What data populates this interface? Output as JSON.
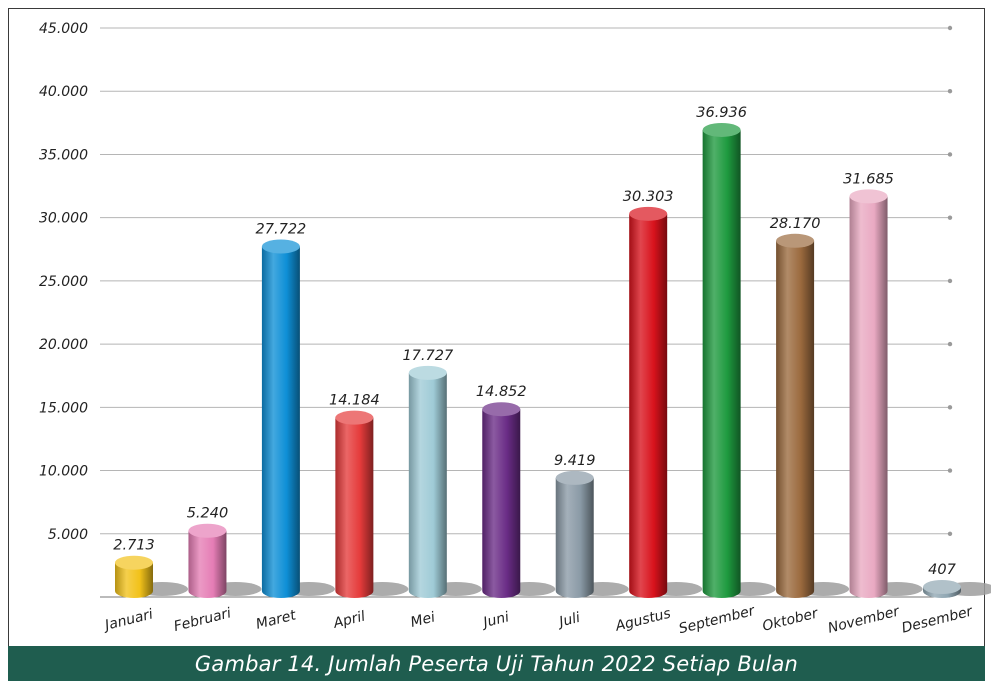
{
  "caption": "Gambar 14. Jumlah Peserta Uji Tahun 2022 Setiap Bulan",
  "chart_data": {
    "type": "bar",
    "title": "",
    "xlabel": "",
    "ylabel": "",
    "ylim": [
      0,
      45000
    ],
    "yticks": [
      5000,
      10000,
      15000,
      20000,
      25000,
      30000,
      35000,
      40000,
      45000
    ],
    "ytick_labels": [
      "5.000",
      "10.000",
      "15.000",
      "20.000",
      "25.000",
      "30.000",
      "35.000",
      "40.000",
      "45.000"
    ],
    "grid": true,
    "categories": [
      "Januari",
      "Februari",
      "Maret",
      "April",
      "Mei",
      "Juni",
      "Juli",
      "Agustus",
      "September",
      "Oktober",
      "November",
      "Desember"
    ],
    "values": [
      2713,
      5240,
      27722,
      14184,
      17727,
      14852,
      9419,
      30303,
      36936,
      28170,
      31685,
      407
    ],
    "value_labels": [
      "2.713",
      "5.240",
      "27.722",
      "14.184",
      "17.727",
      "14.852",
      "9.419",
      "30.303",
      "36.936",
      "28.170",
      "31.685",
      "407"
    ],
    "colors": [
      "#f2c21a",
      "#e57db5",
      "#0e8fd6",
      "#e53b3b",
      "#9fcbd6",
      "#6a2c86",
      "#8a9aa6",
      "#d8121c",
      "#1e9a3f",
      "#9b6a3e",
      "#e9a9c2",
      "#8fa6b2"
    ]
  }
}
